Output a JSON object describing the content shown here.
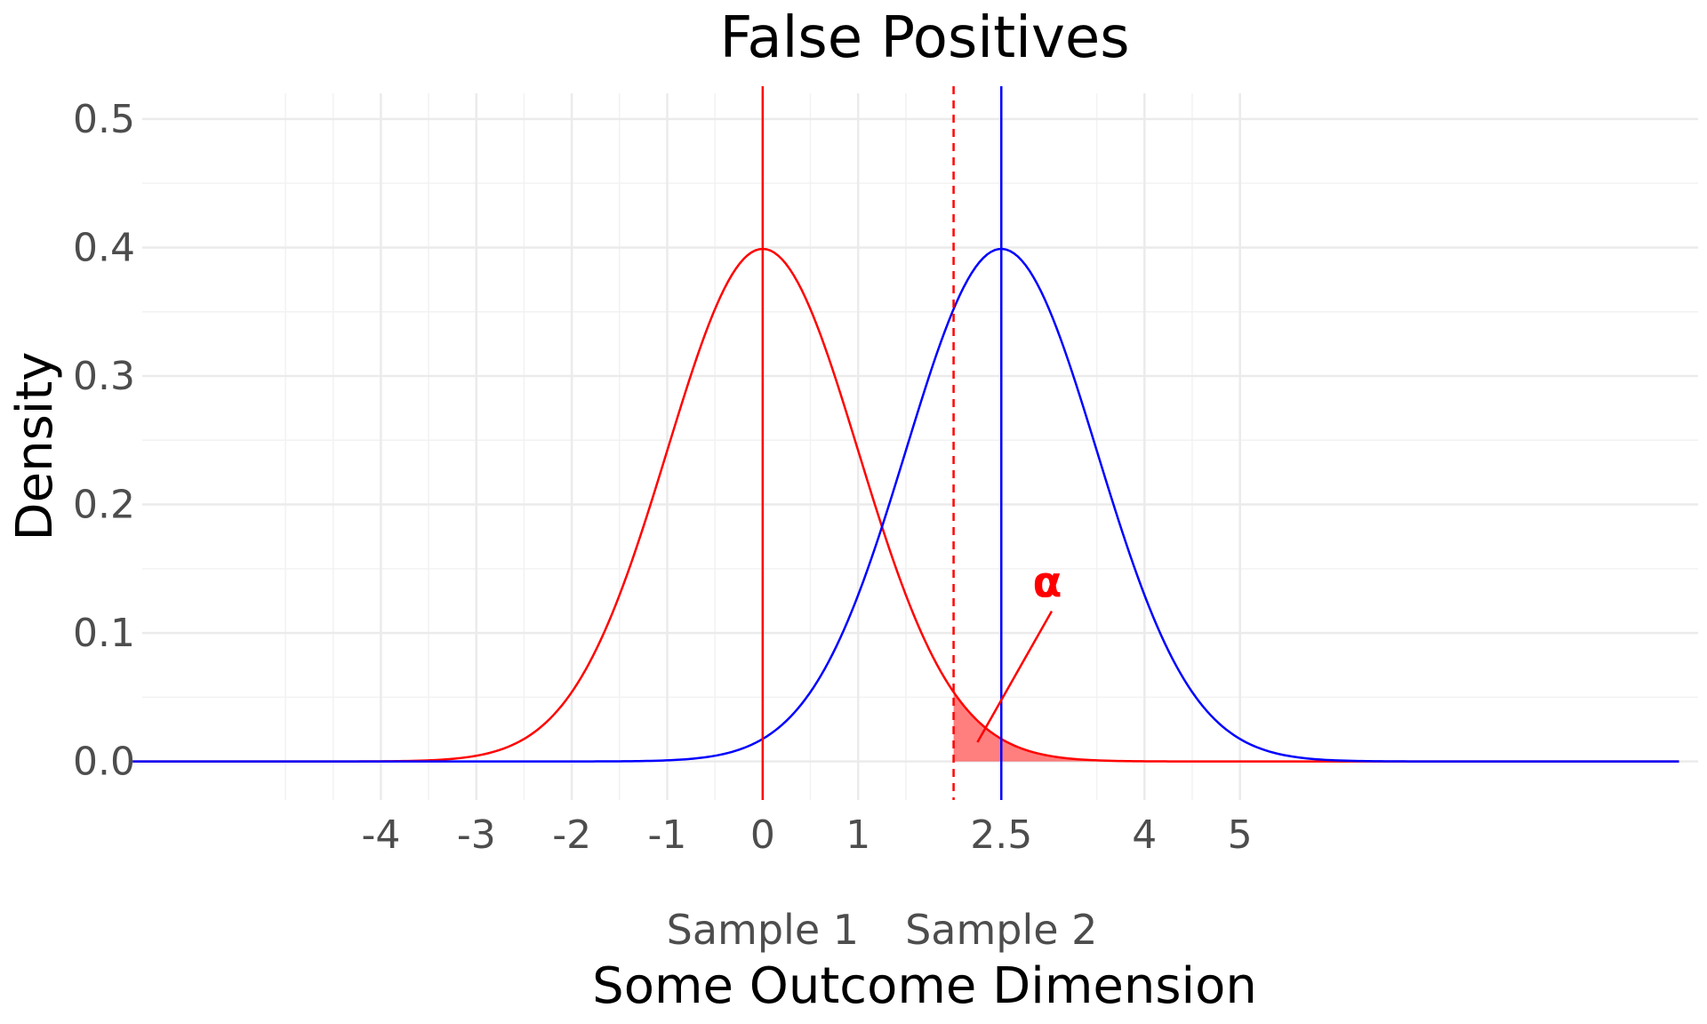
{
  "chart_data": {
    "type": "line",
    "title": "False Positives",
    "xlabel": "Some Outcome Dimension",
    "ylabel": "Density",
    "xlim": [
      -6.5,
      9.8
    ],
    "ylim": [
      -0.03,
      0.52
    ],
    "x_ticks": [
      {
        "value": -4,
        "label": "-4"
      },
      {
        "value": -3,
        "label": "-3"
      },
      {
        "value": -2,
        "label": "-2"
      },
      {
        "value": -1,
        "label": "-1"
      },
      {
        "value": 0,
        "label": "0"
      },
      {
        "value": 1,
        "label": "1"
      },
      {
        "value": 2.5,
        "label": "2.5"
      },
      {
        "value": 4,
        "label": "4"
      },
      {
        "value": 5,
        "label": "5"
      }
    ],
    "x_minor_grid": [
      -5,
      -4.5,
      -3.5,
      -2.5,
      -1.5,
      -0.5,
      0.5,
      1.5,
      2.5,
      3.5,
      4.5
    ],
    "y_ticks": [
      {
        "value": 0.0,
        "label": "0.0"
      },
      {
        "value": 0.1,
        "label": "0.1"
      },
      {
        "value": 0.2,
        "label": "0.2"
      },
      {
        "value": 0.3,
        "label": "0.3"
      },
      {
        "value": 0.4,
        "label": "0.4"
      },
      {
        "value": 0.5,
        "label": "0.5"
      }
    ],
    "y_minor_grid": [
      0.05,
      0.15,
      0.25,
      0.35,
      0.45
    ],
    "series": [
      {
        "color": "#ff0000",
        "mean": 0,
        "sd": 1,
        "x_range": [
          -6.6,
          9.6
        ]
      },
      {
        "color": "#0000ff",
        "mean": 2.5,
        "sd": 1,
        "x_range": [
          -6.6,
          9.6
        ]
      }
    ],
    "vlines": [
      {
        "x": 0,
        "color": "#ff0000",
        "style": "solid"
      },
      {
        "x": 2.5,
        "color": "#0000ff",
        "style": "solid"
      },
      {
        "x": 2.0,
        "color": "#ff0000",
        "style": "dashed"
      }
    ],
    "shaded_region": {
      "from": 2.0,
      "to": 5.0,
      "mean": 0,
      "sd": 1,
      "color": "#ff0000",
      "opacity": 0.5
    },
    "annotation": {
      "text": "α",
      "x": 3.0,
      "y": 0.11,
      "arrow_to_x": 2.25,
      "arrow_to_y": 0.015,
      "color": "#ff0000"
    },
    "sample_labels": [
      {
        "text": "Sample 1",
        "x": 0
      },
      {
        "text": "Sample 2",
        "x": 2.5
      }
    ],
    "grid": true
  }
}
